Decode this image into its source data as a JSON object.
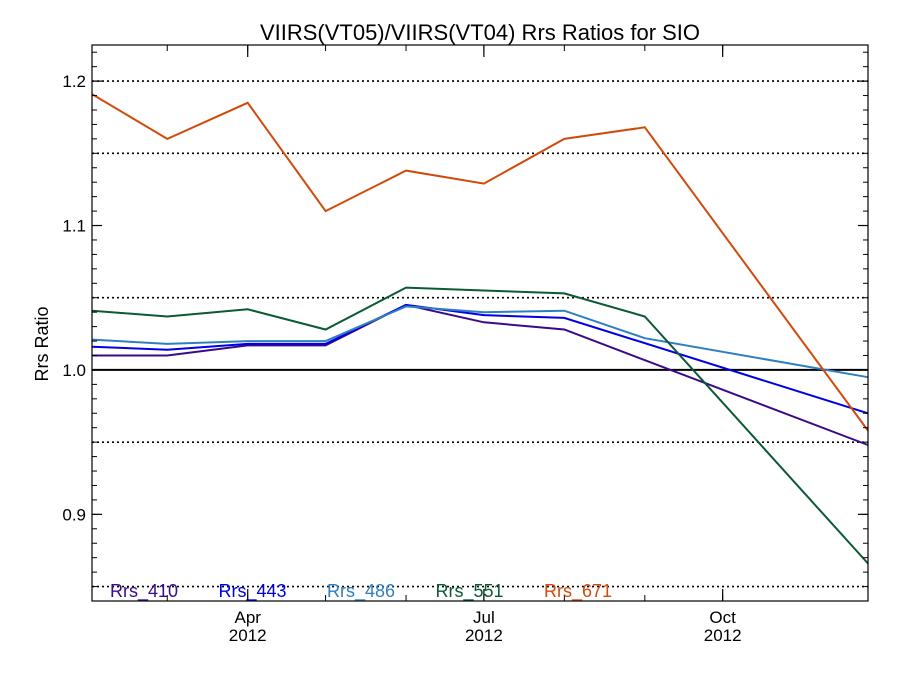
{
  "chart_data": {
    "type": "line",
    "title": "VIIRS(VT05)/VIIRS(VT04)  Rrs Ratios for SIO",
    "xlabel": "",
    "ylabel": "Rrs Ratio",
    "ylim": [
      0.84,
      1.225
    ],
    "xlim": [
      "2012-02-01",
      "2012-11-26"
    ],
    "x": [
      "2012-02-01",
      "2012-03-01",
      "2012-04-01",
      "2012-05-01",
      "2012-06-01",
      "2012-07-01",
      "2012-08-01",
      "2012-09-01",
      "2012-10-01",
      "2012-11-26"
    ],
    "x_ticks": [
      {
        "date": "2012-04-01",
        "month": "Apr",
        "year": "2012"
      },
      {
        "date": "2012-07-01",
        "month": "Jul",
        "year": "2012"
      },
      {
        "date": "2012-10-01",
        "month": "Oct",
        "year": "2012"
      }
    ],
    "y_ticks": [
      "0.9",
      "1.0",
      "1.1",
      "1.2"
    ],
    "y_tick_values": [
      0.9,
      1.0,
      1.1,
      1.2
    ],
    "y_dotted_gridlines": [
      0.85,
      0.95,
      1.05,
      1.15,
      1.2
    ],
    "y_solid_gridlines": [
      1.0
    ],
    "grid": "horizontal dotted",
    "legend_placement": "bottom-left",
    "series": [
      {
        "name": "Rrs_410",
        "color": "#3b0a8a",
        "points": [
          [
            "2012-02-01",
            1.01
          ],
          [
            "2012-03-01",
            1.01
          ],
          [
            "2012-04-01",
            1.017
          ],
          [
            "2012-05-01",
            1.017
          ],
          [
            "2012-06-01",
            1.045
          ],
          [
            "2012-07-01",
            1.033
          ],
          [
            "2012-08-01",
            1.028
          ],
          [
            "2012-11-26",
            0.948
          ]
        ]
      },
      {
        "name": "Rrs_443",
        "color": "#0000e6",
        "points": [
          [
            "2012-02-01",
            1.016
          ],
          [
            "2012-03-01",
            1.014
          ],
          [
            "2012-04-01",
            1.018
          ],
          [
            "2012-05-01",
            1.018
          ],
          [
            "2012-06-01",
            1.045
          ],
          [
            "2012-07-01",
            1.038
          ],
          [
            "2012-08-01",
            1.036
          ],
          [
            "2012-11-26",
            0.97
          ]
        ]
      },
      {
        "name": "Rrs_486",
        "color": "#2f7fc0",
        "points": [
          [
            "2012-02-01",
            1.021
          ],
          [
            "2012-03-01",
            1.018
          ],
          [
            "2012-04-01",
            1.02
          ],
          [
            "2012-05-01",
            1.02
          ],
          [
            "2012-06-01",
            1.044
          ],
          [
            "2012-07-01",
            1.04
          ],
          [
            "2012-08-01",
            1.041
          ],
          [
            "2012-09-01",
            1.022
          ],
          [
            "2012-11-26",
            0.995
          ]
        ]
      },
      {
        "name": "Rrs_551",
        "color": "#0a5a32",
        "points": [
          [
            "2012-02-01",
            1.041
          ],
          [
            "2012-03-01",
            1.037
          ],
          [
            "2012-04-01",
            1.042
          ],
          [
            "2012-05-01",
            1.028
          ],
          [
            "2012-06-01",
            1.057
          ],
          [
            "2012-07-01",
            1.055
          ],
          [
            "2012-08-01",
            1.053
          ],
          [
            "2012-09-01",
            1.037
          ],
          [
            "2012-11-26",
            0.866
          ]
        ]
      },
      {
        "name": "Rrs_671",
        "color": "#d04a0c",
        "points": [
          [
            "2012-02-01",
            1.191
          ],
          [
            "2012-03-01",
            1.16
          ],
          [
            "2012-04-01",
            1.185
          ],
          [
            "2012-05-01",
            1.11
          ],
          [
            "2012-06-01",
            1.138
          ],
          [
            "2012-07-01",
            1.129
          ],
          [
            "2012-08-01",
            1.16
          ],
          [
            "2012-09-01",
            1.168
          ],
          [
            "2012-11-26",
            0.958
          ]
        ]
      }
    ]
  }
}
